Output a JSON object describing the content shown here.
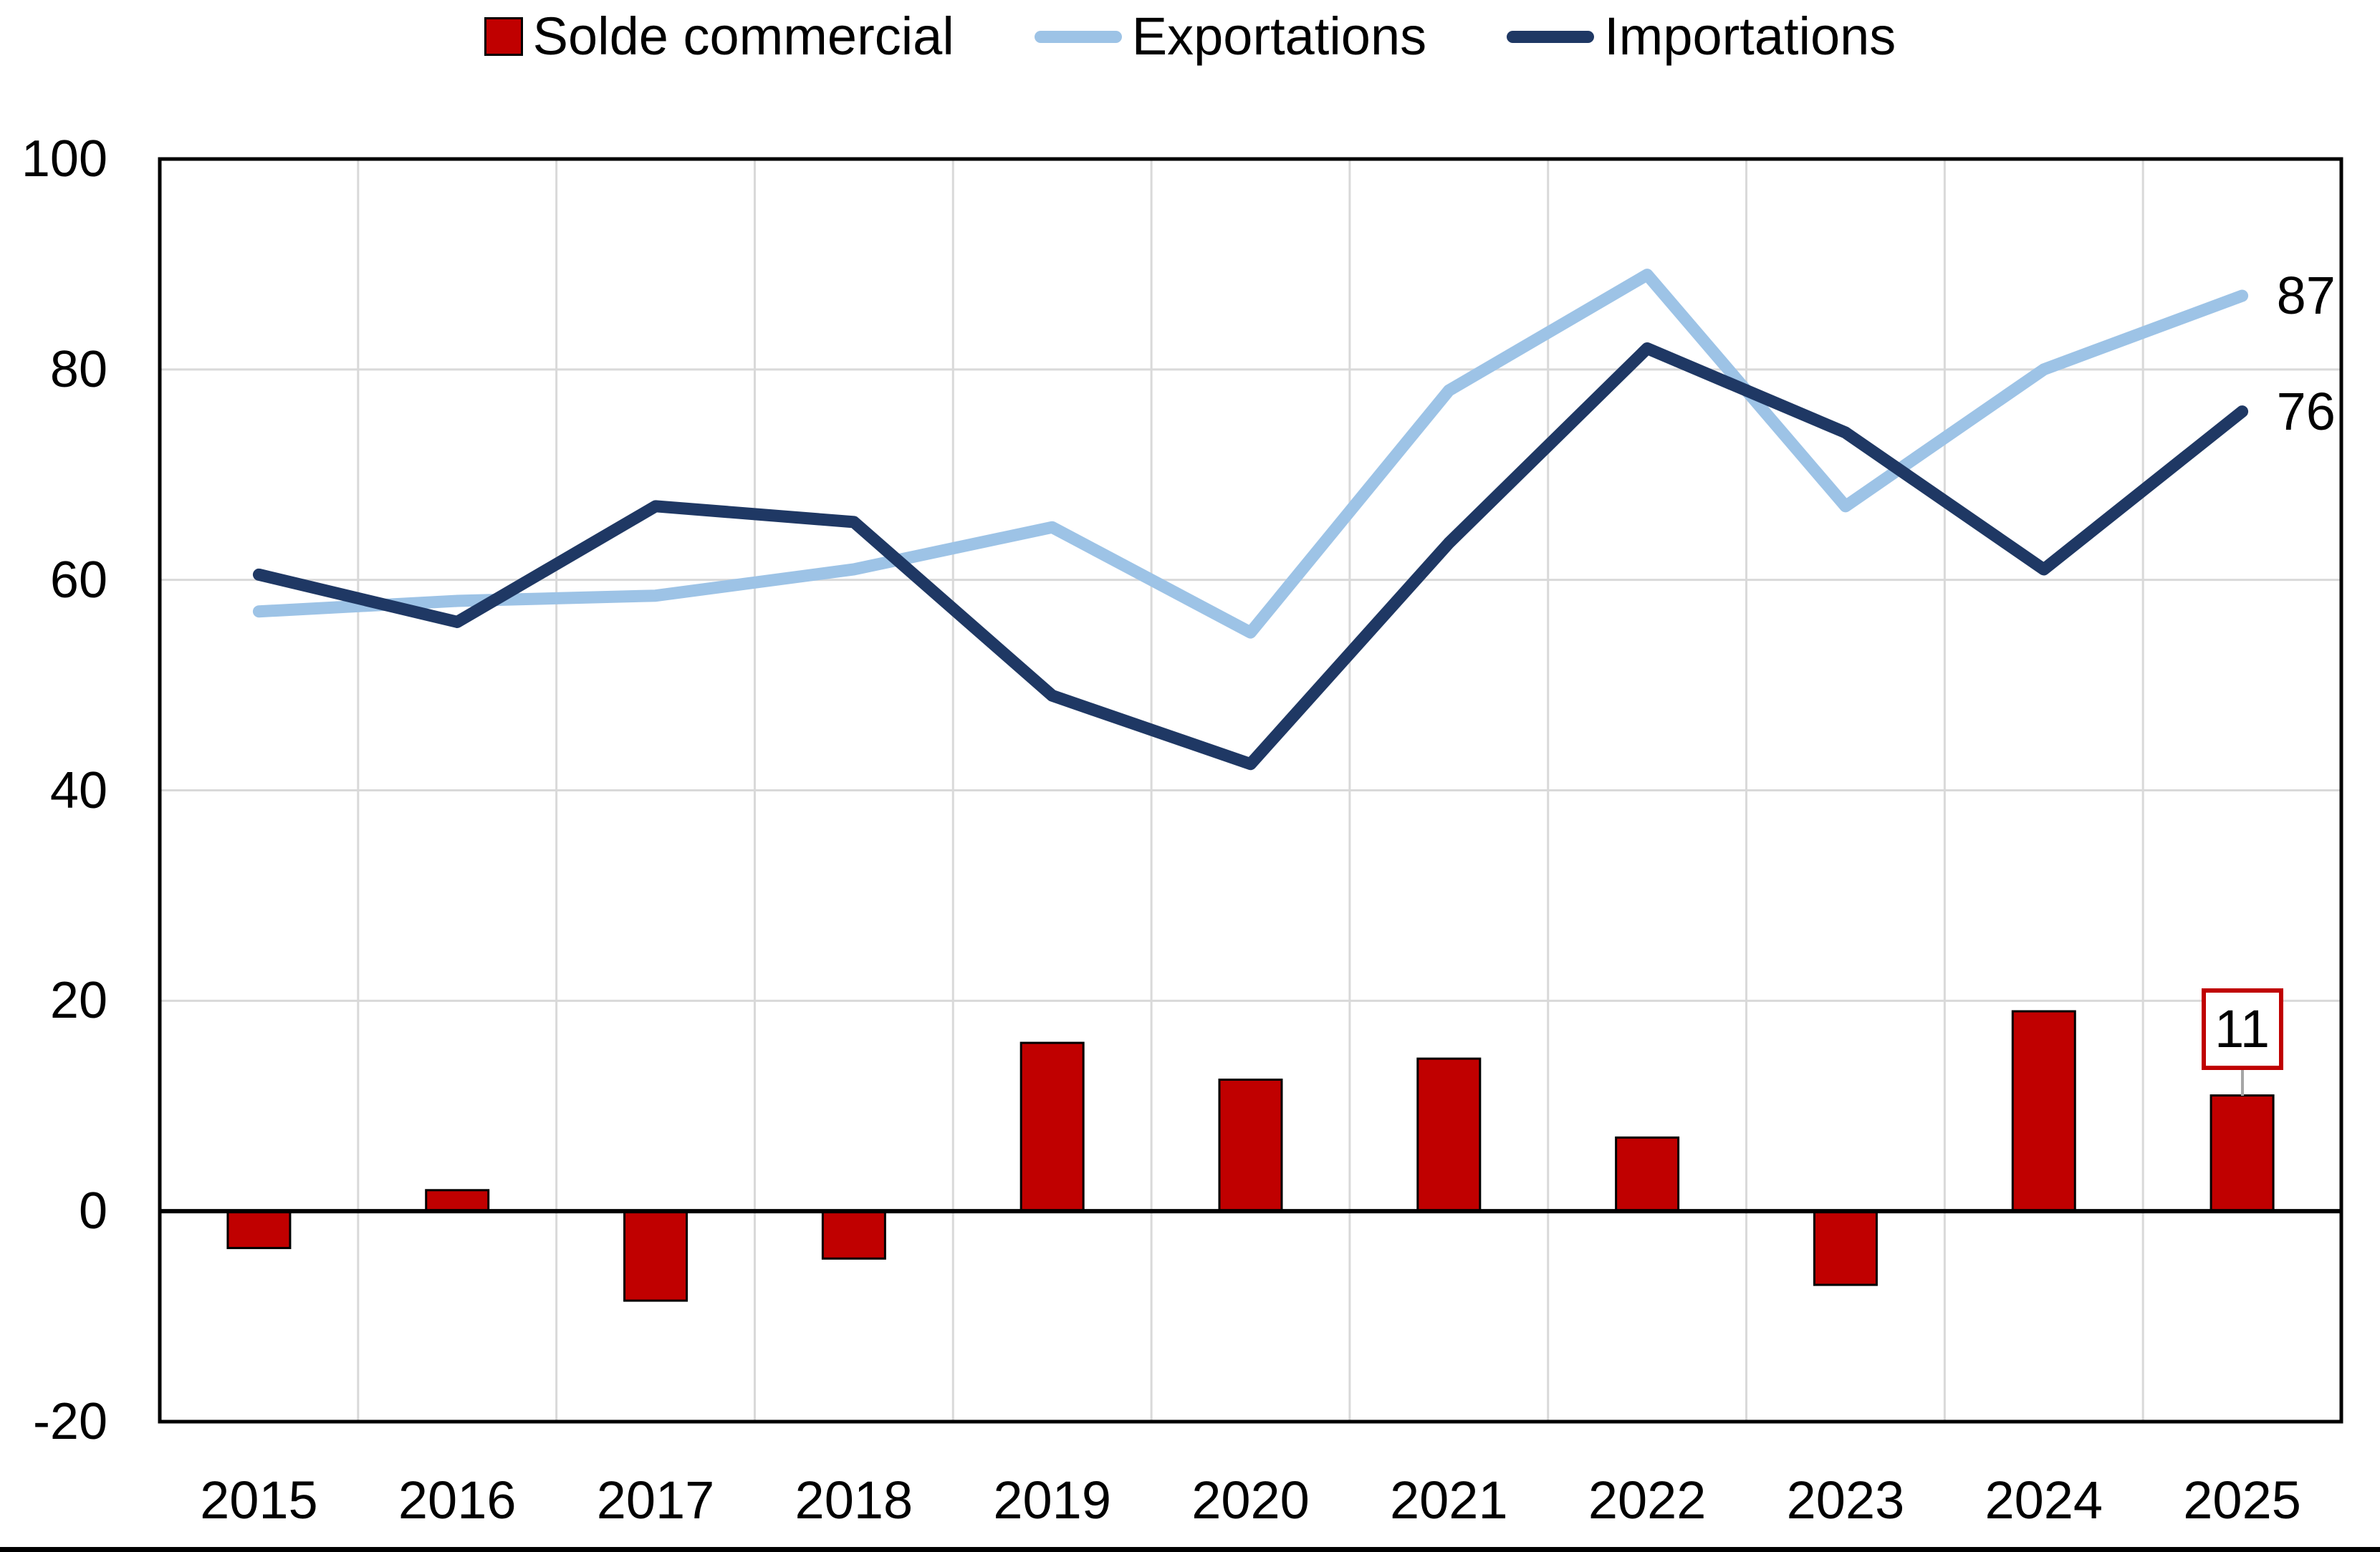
{
  "chart_data": {
    "type": "combo",
    "title": "",
    "categories": [
      "2015",
      "2016",
      "2017",
      "2018",
      "2019",
      "2020",
      "2021",
      "2022",
      "2023",
      "2024",
      "2025"
    ],
    "series": [
      {
        "name": "Solde commercial",
        "chart_type": "bar",
        "color": "#C00000",
        "values": [
          -3.5,
          2,
          -8.5,
          -4.5,
          16,
          12.5,
          14.5,
          7,
          -7,
          19,
          11
        ]
      },
      {
        "name": "Exportations",
        "chart_type": "line",
        "color": "#9DC3E6",
        "values": [
          57,
          58,
          58.5,
          61,
          65,
          55,
          78,
          89,
          67,
          80,
          87
        ],
        "end_label": "87"
      },
      {
        "name": "Importations",
        "chart_type": "line",
        "color": "#1F3864",
        "values": [
          60.5,
          56,
          67,
          65.5,
          49,
          42.5,
          63.5,
          82,
          74,
          61,
          76
        ],
        "end_label": "76"
      }
    ],
    "callout": {
      "category": "2025",
      "series": "Solde commercial",
      "text": "11"
    },
    "xlabel": "",
    "ylabel": "",
    "ylim": [
      -20,
      100
    ],
    "yticks": [
      100,
      80,
      60,
      40,
      20,
      0,
      -20
    ],
    "grid": "on",
    "legend_position": "top-center",
    "colors": {
      "bar_fill": "#C00000",
      "bar_border": "#000000",
      "gridline": "#D9D9D9",
      "axis_border": "#000000",
      "zero_line": "#000000",
      "callout_border": "#C00000",
      "leader_line": "#A6A6A6",
      "text": "#000000"
    }
  }
}
